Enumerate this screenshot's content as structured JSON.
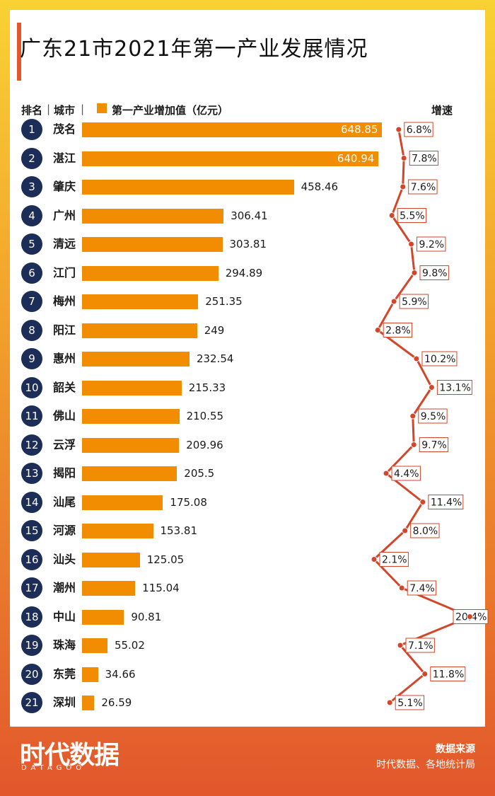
{
  "title": "广东21市2021年第一产业发展情况",
  "header": {
    "rank": "排名",
    "city": "城市",
    "legend": "第一产业增加值（亿元）",
    "growth": "增速"
  },
  "colors": {
    "bar": "#f28c00",
    "rank_circle": "#1c2d57",
    "line": "#d2462a",
    "accent": "#e2572c"
  },
  "chart_data": {
    "type": "bar",
    "orientation": "horizontal",
    "title": "广东21市2021年第一产业发展情况",
    "legend": [
      "第一产业增加值（亿元）"
    ],
    "ranks": [
      "1",
      "2",
      "3",
      "4",
      "5",
      "6",
      "7",
      "8",
      "9",
      "10",
      "11",
      "12",
      "13",
      "14",
      "15",
      "16",
      "17",
      "18",
      "19",
      "20",
      "21"
    ],
    "categories": [
      "茂名",
      "湛江",
      "肇庆",
      "广州",
      "清远",
      "江门",
      "梅州",
      "阳江",
      "惠州",
      "韶关",
      "佛山",
      "云浮",
      "揭阳",
      "汕尾",
      "河源",
      "汕头",
      "潮州",
      "中山",
      "珠海",
      "东莞",
      "深圳"
    ],
    "values": [
      648.85,
      640.94,
      458.46,
      306.41,
      303.81,
      294.89,
      251.35,
      249,
      232.54,
      215.33,
      210.55,
      209.96,
      205.5,
      175.08,
      153.81,
      125.05,
      115.04,
      90.81,
      55.02,
      34.66,
      26.59
    ],
    "value_labels": [
      "648.85",
      "640.94",
      "458.46",
      "306.41",
      "303.81",
      "294.89",
      "251.35",
      "249",
      "232.54",
      "215.33",
      "210.55",
      "209.96",
      "205.5",
      "175.08",
      "153.81",
      "125.05",
      "115.04",
      "90.81",
      "55.02",
      "34.66",
      "26.59"
    ],
    "growth": [
      6.8,
      7.8,
      7.6,
      5.5,
      9.2,
      9.8,
      5.9,
      2.8,
      10.2,
      13.1,
      9.5,
      9.7,
      4.4,
      11.4,
      8.0,
      2.1,
      7.4,
      20.4,
      7.1,
      11.8,
      5.1
    ],
    "growth_labels": [
      "6.8%",
      "7.8%",
      "7.6%",
      "5.5%",
      "9.2%",
      "9.8%",
      "5.9%",
      "2.8%",
      "10.2%",
      "13.1%",
      "9.5%",
      "9.7%",
      "4.4%",
      "11.4%",
      "8.0%",
      "2.1%",
      "7.4%",
      "20.4%",
      "7.1%",
      "11.8%",
      "5.1%"
    ]
  },
  "footer": {
    "logo": "时代数据",
    "logo_sub": "DATAGOO",
    "source_title": "数据来源",
    "source": "时代数据、各地统计局"
  }
}
